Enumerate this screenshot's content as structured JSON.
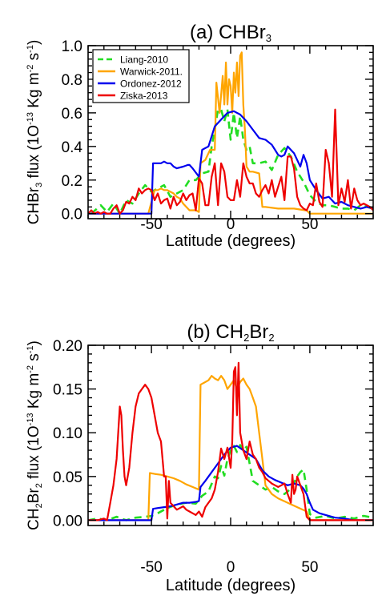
{
  "chart_data": [
    {
      "type": "line",
      "title": "(a) CHBr",
      "title_sub": "3",
      "ylabel": {
        "a": "CHBr",
        "sub1": "3",
        "b": " flux (1O",
        "sup1": "-13",
        "c": " Kg m",
        "sup2": "-2",
        "d": " s",
        "sup3": "-1",
        "e": ")"
      },
      "xlabel": "Latitude (degrees)",
      "xlim": [
        -90,
        90
      ],
      "ylim": [
        -0.03,
        1.0
      ],
      "xticks": [
        {
          "v": -50,
          "label": "-50"
        },
        {
          "v": 0,
          "label": "0"
        },
        {
          "v": 50,
          "label": "50"
        }
      ],
      "yticks": [
        {
          "v": 0.0,
          "label": "0.0"
        },
        {
          "v": 0.2,
          "label": "0.2"
        },
        {
          "v": 0.4,
          "label": "0.4"
        },
        {
          "v": 0.6,
          "label": "0.6"
        },
        {
          "v": 0.8,
          "label": "0.8"
        },
        {
          "v": 1.0,
          "label": "1.0"
        }
      ],
      "legend_position": "top-left",
      "series": [
        {
          "name": "Liang-2010",
          "color": "#22dd22",
          "dash": true,
          "x": [
            -88,
            -82,
            -78,
            -74,
            -70,
            -66,
            -62,
            -58,
            -54,
            -50,
            -46,
            -42,
            -38,
            -34,
            -30,
            -26,
            -22,
            -18,
            -14,
            -12,
            -10,
            -8,
            -6,
            -4,
            -2,
            0,
            2,
            4,
            6,
            8,
            10,
            12,
            14,
            18,
            22,
            26,
            30,
            34,
            38,
            42,
            46,
            50,
            54,
            58,
            62,
            66,
            70,
            74,
            78,
            82,
            86,
            90
          ],
          "y": [
            0.0,
            0.05,
            0.01,
            0.06,
            0.0,
            0.08,
            0.06,
            0.12,
            0.17,
            0.13,
            0.15,
            0.17,
            0.1,
            0.12,
            0.14,
            0.2,
            0.2,
            0.24,
            0.25,
            0.4,
            0.5,
            0.62,
            0.62,
            0.55,
            0.62,
            0.44,
            0.6,
            0.45,
            0.58,
            0.44,
            0.38,
            0.4,
            0.3,
            0.3,
            0.31,
            0.26,
            0.35,
            0.39,
            0.34,
            0.25,
            0.19,
            0.11,
            0.07,
            0.05,
            0.05,
            0.04,
            0.03,
            0.03,
            0.02,
            0.05,
            0.04,
            0.03
          ]
        },
        {
          "name": "Warwick-2011.",
          "color": "#ffa500",
          "dash": false,
          "x": [
            -90,
            -56,
            -52,
            -48,
            -46,
            -44,
            -42,
            -40,
            -38,
            -36,
            -34,
            -32,
            -30,
            -28,
            -26,
            -24,
            -22,
            -20,
            -19,
            -16,
            -13,
            -10,
            -9,
            -7,
            -5,
            -4,
            -3,
            -2,
            -1,
            0,
            1,
            2,
            3,
            4,
            5,
            6,
            7,
            8,
            9,
            10,
            12,
            14,
            18,
            20,
            22,
            30,
            40,
            47,
            48,
            50,
            54,
            60,
            70,
            80,
            90
          ],
          "y": [
            0.0,
            0.0,
            0.0,
            0.14,
            0.14,
            0.15,
            0.14,
            0.14,
            0.13,
            0.12,
            0.1,
            0.09,
            0.06,
            0.04,
            0.02,
            0.02,
            0.02,
            0.01,
            0.3,
            0.32,
            0.38,
            0.38,
            0.78,
            0.6,
            0.82,
            0.65,
            0.9,
            0.65,
            0.8,
            0.76,
            0.6,
            0.84,
            0.72,
            0.9,
            0.7,
            0.94,
            0.96,
            0.65,
            0.5,
            0.28,
            0.25,
            0.25,
            0.24,
            0.04,
            0.04,
            0.03,
            0.03,
            0.02,
            0.02,
            0.0,
            0.0,
            0.0,
            0.0,
            0.0,
            0.0
          ]
        },
        {
          "name": "Ordonez-2012",
          "color": "#0000ee",
          "dash": false,
          "x": [
            -90,
            -50,
            -49,
            -44,
            -42,
            -40,
            -38,
            -36,
            -34,
            -30,
            -27,
            -26,
            -24,
            -20,
            -18,
            -14,
            -10,
            -6,
            -2,
            2,
            6,
            10,
            14,
            18,
            22,
            26,
            28,
            30,
            32,
            34,
            36,
            40,
            44,
            46,
            48,
            50,
            54,
            58,
            62,
            66,
            70,
            74,
            78,
            82,
            86,
            90
          ],
          "y": [
            0.0,
            0.0,
            0.3,
            0.3,
            0.31,
            0.3,
            0.3,
            0.28,
            0.27,
            0.28,
            0.29,
            0.29,
            0.27,
            0.22,
            0.38,
            0.4,
            0.52,
            0.56,
            0.6,
            0.61,
            0.59,
            0.55,
            0.5,
            0.45,
            0.44,
            0.41,
            0.38,
            0.35,
            0.34,
            0.35,
            0.4,
            0.36,
            0.28,
            0.35,
            0.3,
            0.2,
            0.14,
            0.09,
            0.1,
            0.06,
            0.07,
            0.05,
            0.04,
            0.03,
            0.04,
            0.03
          ]
        },
        {
          "name": "Ziska-2013",
          "color": "#ee0000",
          "dash": false,
          "x": [
            -90,
            -88,
            -86,
            -84,
            -82,
            -80,
            -78,
            -76,
            -74,
            -72,
            -70,
            -68,
            -66,
            -64,
            -62,
            -60,
            -58,
            -56,
            -54,
            -52,
            -50,
            -48,
            -46,
            -44,
            -42,
            -40,
            -38,
            -36,
            -34,
            -32,
            -30,
            -28,
            -26,
            -24,
            -22,
            -20,
            -18,
            -16,
            -14,
            -12,
            -10,
            -8,
            -6,
            -4,
            -2,
            0,
            2,
            4,
            6,
            8,
            10,
            12,
            14,
            16,
            18,
            20,
            22,
            24,
            26,
            28,
            30,
            32,
            34,
            36,
            38,
            40,
            42,
            44,
            46,
            48,
            50,
            52,
            54,
            56,
            58,
            60,
            62,
            64,
            66,
            68,
            70,
            72,
            74,
            76,
            78,
            80,
            82,
            84,
            86,
            88,
            90
          ],
          "y": [
            0.0,
            0.02,
            0.0,
            0.01,
            0.0,
            0.01,
            0.0,
            0.0,
            0.03,
            0.05,
            0.0,
            0.02,
            0.07,
            0.06,
            0.1,
            0.08,
            0.15,
            0.12,
            0.14,
            0.15,
            0.14,
            0.08,
            0.12,
            0.06,
            0.08,
            0.09,
            0.03,
            0.1,
            0.05,
            0.07,
            0.12,
            0.08,
            0.11,
            0.12,
            0.02,
            0.21,
            0.18,
            0.05,
            0.05,
            0.22,
            0.3,
            0.05,
            0.3,
            0.25,
            0.1,
            0.08,
            0.08,
            0.2,
            0.1,
            0.3,
            0.22,
            0.18,
            0.18,
            0.12,
            0.1,
            0.14,
            0.17,
            0.12,
            0.2,
            0.1,
            0.16,
            0.22,
            0.08,
            0.34,
            0.34,
            0.27,
            0.1,
            0.05,
            0.03,
            0.02,
            0.06,
            0.05,
            0.18,
            0.07,
            0.04,
            0.38,
            0.3,
            0.1,
            0.62,
            0.05,
            0.15,
            0.07,
            0.2,
            0.03,
            0.15,
            0.08,
            0.05,
            0.06,
            0.05,
            0.04,
            0.02
          ]
        }
      ]
    },
    {
      "type": "line",
      "title": "(b) CH",
      "title_sub": "2",
      "title_tail": "Br",
      "title_sub2": "2",
      "ylabel": {
        "a": "CH",
        "sub0": "2",
        "a2": "Br",
        "sub1": "2",
        "b": " flux (1O",
        "sup1": "-13",
        "c": " Kg m",
        "sup2": "-2",
        "d": " s",
        "sup3": "-1",
        "e": ")"
      },
      "xlabel": "Latitude (degrees)",
      "xlim": [
        -90,
        90
      ],
      "ylim": [
        -0.006,
        0.2
      ],
      "xticks": [
        {
          "v": -50,
          "label": "-50"
        },
        {
          "v": 0,
          "label": "0"
        },
        {
          "v": 50,
          "label": "50"
        }
      ],
      "yticks": [
        {
          "v": 0.0,
          "label": "0.00"
        },
        {
          "v": 0.05,
          "label": "0.05"
        },
        {
          "v": 0.1,
          "label": "0.10"
        },
        {
          "v": 0.15,
          "label": "0.15"
        },
        {
          "v": 0.2,
          "label": "0.20"
        }
      ],
      "series": [
        {
          "name": "Liang-2010",
          "color": "#22dd22",
          "dash": true,
          "x": [
            -90,
            -84,
            -78,
            -72,
            -66,
            -60,
            -54,
            -50,
            -46,
            -40,
            -34,
            -28,
            -22,
            -18,
            -14,
            -10,
            -8,
            -6,
            -4,
            -2,
            0,
            2,
            4,
            6,
            8,
            10,
            14,
            18,
            22,
            26,
            30,
            34,
            38,
            42,
            44,
            46,
            48,
            50,
            54,
            60,
            66,
            72,
            78,
            84,
            90
          ],
          "y": [
            0.0,
            0.002,
            0.0,
            0.004,
            0.0,
            0.003,
            0.004,
            0.005,
            0.008,
            0.014,
            0.018,
            0.02,
            0.019,
            0.028,
            0.033,
            0.05,
            0.048,
            0.062,
            0.051,
            0.07,
            0.08,
            0.085,
            0.078,
            0.086,
            0.08,
            0.084,
            0.045,
            0.04,
            0.035,
            0.038,
            0.033,
            0.03,
            0.036,
            0.05,
            0.055,
            0.058,
            0.035,
            0.007,
            0.003,
            0.005,
            0.002,
            0.004,
            0.002,
            0.005,
            0.003
          ]
        },
        {
          "name": "Warwick-2011.",
          "color": "#ffa500",
          "dash": false,
          "x": [
            -90,
            -52,
            -51,
            -48,
            -44,
            -40,
            -36,
            -32,
            -28,
            -24,
            -20,
            -19,
            -14,
            -12,
            -10,
            -8,
            -6,
            -4,
            -2,
            0,
            2,
            4,
            6,
            8,
            10,
            12,
            14,
            16,
            18,
            20,
            22,
            26,
            30,
            36,
            42,
            48,
            50,
            54,
            60,
            70,
            80,
            90
          ],
          "y": [
            0.0,
            0.0,
            0.054,
            0.053,
            0.052,
            0.05,
            0.048,
            0.045,
            0.041,
            0.038,
            0.035,
            0.155,
            0.16,
            0.165,
            0.162,
            0.16,
            0.165,
            0.16,
            0.15,
            0.155,
            0.16,
            0.15,
            0.158,
            0.162,
            0.155,
            0.15,
            0.14,
            0.13,
            0.1,
            0.07,
            0.04,
            0.03,
            0.025,
            0.02,
            0.015,
            0.01,
            0.0,
            0.0,
            0.0,
            0.0,
            0.0,
            0.0
          ]
        },
        {
          "name": "Ordonez-2012",
          "color": "#0000ee",
          "dash": false,
          "x": [
            -90,
            -50,
            -49,
            -46,
            -42,
            -38,
            -34,
            -30,
            -26,
            -22,
            -20,
            -19,
            -16,
            -12,
            -8,
            -4,
            0,
            4,
            8,
            12,
            16,
            20,
            24,
            28,
            32,
            36,
            40,
            44,
            46,
            48,
            50,
            52,
            56,
            60,
            66,
            72,
            78,
            84,
            90
          ],
          "y": [
            0.0,
            0.0,
            0.013,
            0.014,
            0.015,
            0.016,
            0.018,
            0.02,
            0.02,
            0.021,
            0.022,
            0.038,
            0.045,
            0.055,
            0.065,
            0.075,
            0.083,
            0.085,
            0.08,
            0.075,
            0.07,
            0.057,
            0.05,
            0.046,
            0.043,
            0.04,
            0.042,
            0.04,
            0.036,
            0.03,
            0.02,
            0.012,
            0.008,
            0.006,
            0.003,
            0.002,
            0.0,
            0.0,
            0.0
          ]
        },
        {
          "name": "Ziska-2013",
          "color": "#ee0000",
          "dash": false,
          "x": [
            -90,
            -84,
            -80,
            -78,
            -76,
            -74,
            -72,
            -70,
            -69,
            -68,
            -67,
            -66,
            -64,
            -62,
            -60,
            -58,
            -56,
            -54,
            -52,
            -50,
            -48,
            -46,
            -44,
            -42,
            -41,
            -40,
            -39,
            -38,
            -36,
            -34,
            -32,
            -30,
            -28,
            -26,
            -24,
            -22,
            -20,
            -18,
            -16,
            -14,
            -12,
            -10,
            -8,
            -6,
            -4,
            -2,
            0,
            1,
            2,
            3,
            4,
            5,
            6,
            8,
            10,
            12,
            14,
            16,
            18,
            20,
            22,
            24,
            26,
            28,
            30,
            32,
            34,
            36,
            38,
            39,
            40,
            41,
            42,
            44,
            46,
            48,
            50,
            52,
            54,
            56,
            60,
            66,
            72,
            80,
            90
          ],
          "y": [
            0.0,
            0.0,
            0.002,
            0.0,
            0.02,
            0.04,
            0.07,
            0.13,
            0.12,
            0.08,
            0.05,
            0.04,
            0.06,
            0.1,
            0.13,
            0.145,
            0.15,
            0.155,
            0.15,
            0.14,
            0.12,
            0.1,
            0.09,
            0.05,
            0.05,
            0.002,
            0.045,
            0.02,
            0.016,
            0.012,
            0.014,
            0.016,
            0.012,
            0.01,
            0.008,
            0.006,
            0.01,
            0.004,
            0.015,
            0.02,
            0.025,
            0.035,
            0.055,
            0.082,
            0.07,
            0.083,
            0.06,
            0.09,
            0.17,
            0.175,
            0.12,
            0.18,
            0.1,
            0.08,
            0.07,
            0.09,
            0.075,
            0.07,
            0.06,
            0.055,
            0.048,
            0.045,
            0.042,
            0.04,
            0.038,
            0.04,
            0.042,
            0.03,
            0.02,
            0.052,
            0.03,
            0.035,
            0.05,
            0.04,
            0.03,
            0.004,
            0.0,
            0.0,
            0.0,
            0.0,
            0.0,
            0.0,
            0.0,
            0.0,
            0.0
          ]
        }
      ]
    }
  ]
}
